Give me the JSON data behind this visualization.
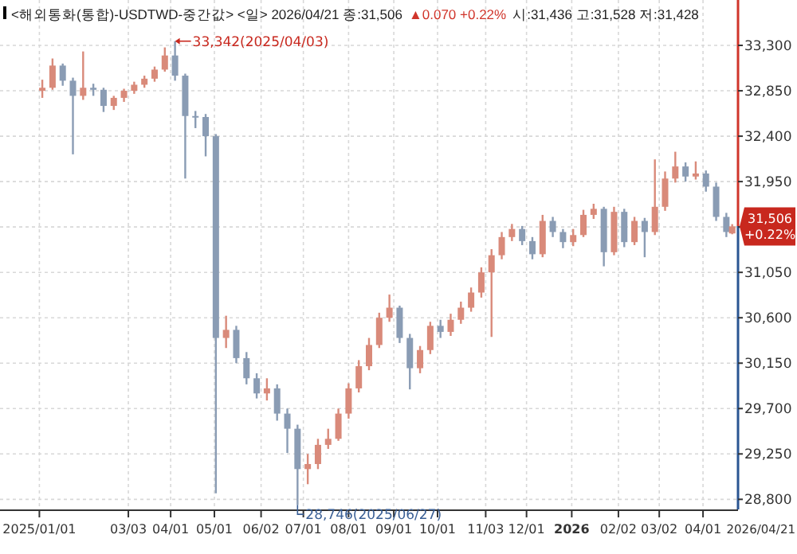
{
  "chart_data": {
    "type": "candlestick",
    "title": "<해외통화(통합)-USDTWD-중간값> <일> 2026/04/21 종:31,506",
    "annotations": [
      "▲0.070 +0.22%",
      "시:31,436 고:31,528 저:31,428",
      "2026/04/21",
      "33,342(2025/04/03)",
      "28,746(2025/06/27)",
      "31,506",
      "+0.22%"
    ],
    "x": [
      "2025-01-03",
      "2025-01-10",
      "2025-01-17",
      "2025-01-24",
      "2025-01-31",
      "2025-02-07",
      "2025-02-14",
      "2025-02-21",
      "2025-02-28",
      "2025-03-07",
      "2025-03-14",
      "2025-03-21",
      "2025-03-28",
      "2025-04-04",
      "2025-04-11",
      "2025-04-18",
      "2025-04-25",
      "2025-05-02",
      "2025-05-09",
      "2025-05-16",
      "2025-05-23",
      "2025-05-30",
      "2025-06-06",
      "2025-06-13",
      "2025-06-20",
      "2025-06-27",
      "2025-07-04",
      "2025-07-11",
      "2025-07-18",
      "2025-07-25",
      "2025-08-01",
      "2025-08-08",
      "2025-08-15",
      "2025-08-22",
      "2025-08-29",
      "2025-09-05",
      "2025-09-12",
      "2025-09-19",
      "2025-09-26",
      "2025-10-03",
      "2025-10-10",
      "2025-10-17",
      "2025-10-24",
      "2025-10-31",
      "2025-11-07",
      "2025-11-14",
      "2025-11-21",
      "2025-11-28",
      "2025-12-05",
      "2025-12-12",
      "2025-12-19",
      "2025-12-26",
      "2026-01-02",
      "2026-01-09",
      "2026-01-16",
      "2026-01-23",
      "2026-01-30",
      "2026-02-06",
      "2026-02-13",
      "2026-02-20",
      "2026-02-27",
      "2026-03-06",
      "2026-03-13",
      "2026-03-20",
      "2026-03-27",
      "2026-04-03",
      "2026-04-10",
      "2026-04-17",
      "2026-04-21"
    ],
    "ohlc": [
      [
        32850,
        32960,
        32780,
        32880
      ],
      [
        32880,
        33170,
        32860,
        33100
      ],
      [
        33100,
        33120,
        32900,
        32950
      ],
      [
        32950,
        32980,
        32220,
        32800
      ],
      [
        32800,
        33240,
        32760,
        32880
      ],
      [
        32880,
        32920,
        32800,
        32860
      ],
      [
        32860,
        32880,
        32640,
        32700
      ],
      [
        32700,
        32800,
        32660,
        32780
      ],
      [
        32780,
        32870,
        32740,
        32850
      ],
      [
        32850,
        32940,
        32820,
        32910
      ],
      [
        32910,
        33000,
        32880,
        32970
      ],
      [
        32970,
        33090,
        32940,
        33060
      ],
      [
        33060,
        33280,
        33040,
        33200
      ],
      [
        33200,
        33342,
        32950,
        33000
      ],
      [
        33000,
        33020,
        31980,
        32600
      ],
      [
        32600,
        32650,
        32480,
        32590
      ],
      [
        32590,
        32620,
        32200,
        32400
      ],
      [
        32400,
        32420,
        28860,
        30400
      ],
      [
        30400,
        30620,
        30300,
        30480
      ],
      [
        30480,
        30520,
        30150,
        30200
      ],
      [
        30200,
        30260,
        29940,
        30000
      ],
      [
        30000,
        30050,
        29800,
        29850
      ],
      [
        29850,
        30000,
        29780,
        29900
      ],
      [
        29900,
        29940,
        29580,
        29650
      ],
      [
        29650,
        29700,
        29260,
        29500
      ],
      [
        29500,
        29540,
        28746,
        29100
      ],
      [
        29100,
        29250,
        28950,
        29150
      ],
      [
        29150,
        29400,
        29100,
        29340
      ],
      [
        29340,
        29500,
        29300,
        29400
      ],
      [
        29400,
        29700,
        29380,
        29650
      ],
      [
        29650,
        29950,
        29600,
        29900
      ],
      [
        29900,
        30180,
        29860,
        30120
      ],
      [
        30120,
        30400,
        30080,
        30330
      ],
      [
        30330,
        30650,
        30300,
        30600
      ],
      [
        30600,
        30830,
        30560,
        30700
      ],
      [
        30700,
        30720,
        30350,
        30400
      ],
      [
        30400,
        30440,
        29890,
        30100
      ],
      [
        30100,
        30320,
        30050,
        30280
      ],
      [
        30280,
        30560,
        30240,
        30520
      ],
      [
        30520,
        30580,
        30400,
        30460
      ],
      [
        30460,
        30640,
        30420,
        30580
      ],
      [
        30580,
        30760,
        30540,
        30700
      ],
      [
        30700,
        30900,
        30660,
        30850
      ],
      [
        30850,
        31100,
        30800,
        31050
      ],
      [
        31050,
        31280,
        30410,
        31220
      ],
      [
        31220,
        31450,
        31180,
        31400
      ],
      [
        31400,
        31530,
        31360,
        31480
      ],
      [
        31480,
        31510,
        31320,
        31360
      ],
      [
        31360,
        31400,
        31180,
        31230
      ],
      [
        31230,
        31620,
        31200,
        31560
      ],
      [
        31560,
        31600,
        31400,
        31450
      ],
      [
        31450,
        31480,
        31290,
        31350
      ],
      [
        31350,
        31480,
        31310,
        31420
      ],
      [
        31420,
        31670,
        31400,
        31620
      ],
      [
        31620,
        31730,
        31580,
        31680
      ],
      [
        31680,
        31700,
        31110,
        31250
      ],
      [
        31250,
        31700,
        31220,
        31650
      ],
      [
        31650,
        31680,
        31300,
        31350
      ],
      [
        31350,
        31600,
        31320,
        31560
      ],
      [
        31560,
        31590,
        31200,
        31450
      ],
      [
        31450,
        32170,
        31420,
        31700
      ],
      [
        31700,
        32050,
        31660,
        31980
      ],
      [
        31980,
        32246,
        31940,
        32100
      ],
      [
        32100,
        32140,
        31950,
        32000
      ],
      [
        32000,
        32150,
        31970,
        32030
      ],
      [
        32030,
        32060,
        31850,
        31900
      ],
      [
        31900,
        31940,
        31560,
        31600
      ],
      [
        31600,
        31640,
        31400,
        31450
      ],
      [
        31436,
        31528,
        31428,
        31506
      ]
    ],
    "xlim": [
      "2024-12-05",
      "2026-04-25"
    ],
    "xticks": [
      {
        "value": "2025-01-01",
        "label": "2025/01/01"
      },
      {
        "value": "2025-03-03",
        "label": "03/03"
      },
      {
        "value": "2025-04-01",
        "label": "04/01"
      },
      {
        "value": "2025-05-01",
        "label": "05/01"
      },
      {
        "value": "2025-06-02",
        "label": "06/02"
      },
      {
        "value": "2025-07-01",
        "label": "07/01"
      },
      {
        "value": "2025-08-01",
        "label": "08/01"
      },
      {
        "value": "2025-09-01",
        "label": "09/01"
      },
      {
        "value": "2025-10-01",
        "label": "10/01"
      },
      {
        "value": "2025-11-03",
        "label": "11/03"
      },
      {
        "value": "2025-12-01",
        "label": "12/01"
      },
      {
        "value": "2026-01-01",
        "label": "2026"
      },
      {
        "value": "2026-02-02",
        "label": "02/02"
      },
      {
        "value": "2026-03-02",
        "label": "03/02"
      },
      {
        "value": "2026-04-01",
        "label": "04/01"
      }
    ],
    "ylim": [
      28700,
      33750
    ],
    "yticks": [
      {
        "value": 28800,
        "label": "28,800"
      },
      {
        "value": 29250,
        "label": "29,250"
      },
      {
        "value": 29700,
        "label": "29,700"
      },
      {
        "value": 30150,
        "label": "30,150"
      },
      {
        "value": 30600,
        "label": "30,600"
      },
      {
        "value": 31050,
        "label": "31,050"
      },
      {
        "value": 31500,
        "label": null
      },
      {
        "value": 31950,
        "label": "31,950"
      },
      {
        "value": 32400,
        "label": "32,400"
      },
      {
        "value": 32850,
        "label": "32,850"
      },
      {
        "value": 33300,
        "label": "33,300"
      }
    ],
    "grid": true
  }
}
